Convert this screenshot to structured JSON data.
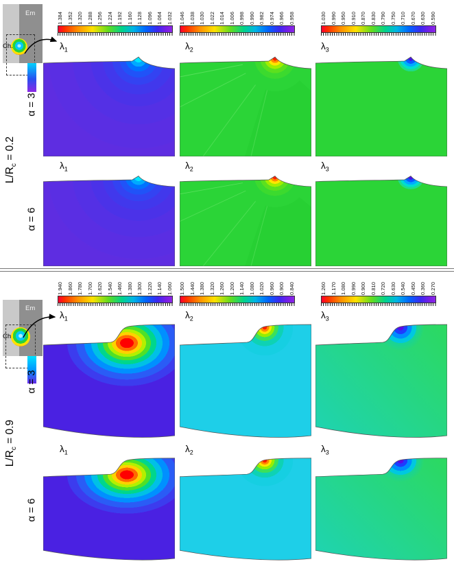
{
  "sections": [
    {
      "group_label": {
        "pre": "L/R",
        "sub": "c",
        "post": " = 0.2"
      },
      "schematic": {
        "em": "Em",
        "ch": "Ch."
      },
      "colorbars": [
        {
          "label": "lambda1",
          "ticks": [
            "1.384",
            "1.352",
            "1.320",
            "1.288",
            "1.256",
            "1.224",
            "1.192",
            "1.160",
            "1.128",
            "1.096",
            "1.064",
            "1.032"
          ]
        },
        {
          "label": "lambda2",
          "ticks": [
            "1.046",
            "1.038",
            "1.030",
            "1.022",
            "1.014",
            "1.006",
            "0.998",
            "0.990",
            "0.982",
            "0.974",
            "0.966",
            "0.958"
          ]
        },
        {
          "label": "lambda3",
          "ticks": [
            "1.030",
            "0.990",
            "0.950",
            "0.910",
            "0.870",
            "0.830",
            "0.790",
            "0.750",
            "0.710",
            "0.670",
            "0.630",
            "0.590"
          ]
        }
      ],
      "rows": [
        {
          "alpha": "α = 3",
          "plots": [
            {
              "base": "λ",
              "sub": "1"
            },
            {
              "base": "λ",
              "sub": "2"
            },
            {
              "base": "λ",
              "sub": "3"
            }
          ]
        },
        {
          "alpha": "α = 6",
          "plots": [
            {
              "base": "λ",
              "sub": "1"
            },
            {
              "base": "λ",
              "sub": "2"
            },
            {
              "base": "λ",
              "sub": "3"
            }
          ]
        }
      ]
    },
    {
      "group_label": {
        "pre": "L/R",
        "sub": "c",
        "post": " = 0.9"
      },
      "schematic": {
        "em": "Em",
        "ch": "Ch"
      },
      "colorbars": [
        {
          "label": "lambda1",
          "ticks": [
            "1.940",
            "1.860",
            "1.780",
            "1.700",
            "1.620",
            "1.540",
            "1.460",
            "1.380",
            "1.300",
            "1.220",
            "1.140",
            "1.060"
          ]
        },
        {
          "label": "lambda2",
          "ticks": [
            "1.500",
            "1.440",
            "1.380",
            "1.320",
            "1.260",
            "1.200",
            "1.140",
            "1.080",
            "1.020",
            "0.960",
            "0.900",
            "0.840"
          ]
        },
        {
          "label": "lambda3",
          "ticks": [
            "1.260",
            "1.170",
            "1.080",
            "0.990",
            "0.900",
            "0.810",
            "0.720",
            "0.630",
            "0.540",
            "0.450",
            "0.360",
            "0.270"
          ]
        }
      ],
      "rows": [
        {
          "alpha": "α = 3",
          "plots": [
            {
              "base": "λ",
              "sub": "1"
            },
            {
              "base": "λ",
              "sub": "2"
            },
            {
              "base": "λ",
              "sub": "3"
            }
          ]
        },
        {
          "alpha": "α = 6",
          "plots": [
            {
              "base": "λ",
              "sub": "1"
            },
            {
              "base": "λ",
              "sub": "2"
            },
            {
              "base": "λ",
              "sub": "3"
            }
          ]
        }
      ]
    }
  ],
  "chart_data": [
    {
      "type": "heatmap",
      "subtype": "contour",
      "field": "λ1",
      "section": "L/Rc = 0.2",
      "alphas": [
        "α = 3",
        "α = 6"
      ],
      "contour_levels": [
        1.384,
        1.352,
        1.32,
        1.288,
        1.256,
        1.224,
        1.192,
        1.16,
        1.128,
        1.096,
        1.064,
        1.032
      ],
      "range": [
        1.032,
        1.384
      ],
      "legend_position": "top",
      "description": "Uniform violet field; concentric blue contour fan radiating from the cavity notch at the top-right."
    },
    {
      "type": "heatmap",
      "subtype": "contour",
      "field": "λ2",
      "section": "L/Rc = 0.2",
      "alphas": [
        "α = 3",
        "α = 6"
      ],
      "contour_levels": [
        1.046,
        1.038,
        1.03,
        1.022,
        1.014,
        1.006,
        0.998,
        0.99,
        0.982,
        0.974,
        0.966,
        0.958
      ],
      "range": [
        0.958,
        1.046
      ],
      "legend_position": "top",
      "description": "Uniform green field with faint rays; small rainbow fan (red to yellow) at the notch."
    },
    {
      "type": "heatmap",
      "subtype": "contour",
      "field": "λ3",
      "section": "L/Rc = 0.2",
      "alphas": [
        "α = 3",
        "α = 6"
      ],
      "contour_levels": [
        1.03,
        0.99,
        0.95,
        0.91,
        0.87,
        0.83,
        0.79,
        0.75,
        0.71,
        0.67,
        0.63,
        0.59
      ],
      "range": [
        0.59,
        1.03
      ],
      "legend_position": "top",
      "description": "Uniform green field; small blue spot at the notch."
    },
    {
      "type": "heatmap",
      "subtype": "contour",
      "field": "λ1",
      "section": "L/Rc = 0.9",
      "alphas": [
        "α = 3",
        "α = 6"
      ],
      "contour_levels": [
        1.94,
        1.86,
        1.78,
        1.7,
        1.62,
        1.54,
        1.46,
        1.38,
        1.3,
        1.22,
        1.14,
        1.06
      ],
      "range": [
        1.06,
        1.94
      ],
      "legend_position": "top",
      "description": "Violet field with a large rainbow contour blob (red core) just below the surface step."
    },
    {
      "type": "heatmap",
      "subtype": "contour",
      "field": "λ2",
      "section": "L/Rc = 0.9",
      "alphas": [
        "α = 3",
        "α = 6"
      ],
      "contour_levels": [
        1.5,
        1.44,
        1.38,
        1.32,
        1.26,
        1.2,
        1.14,
        1.08,
        1.02,
        0.96,
        0.9,
        0.84
      ],
      "range": [
        0.84,
        1.5
      ],
      "legend_position": "top",
      "description": "Cyan field; rainbow fan concentrated at the step corner."
    },
    {
      "type": "heatmap",
      "subtype": "contour",
      "field": "λ3",
      "section": "L/Rc = 0.9",
      "alphas": [
        "α = 3",
        "α = 6"
      ],
      "contour_levels": [
        1.26,
        1.17,
        1.08,
        0.99,
        0.9,
        0.81,
        0.72,
        0.63,
        0.54,
        0.45,
        0.36,
        0.27
      ],
      "range": [
        0.27,
        1.26
      ],
      "legend_position": "top",
      "description": "Green-cyan field; blue/violet fan under the step corner."
    }
  ]
}
